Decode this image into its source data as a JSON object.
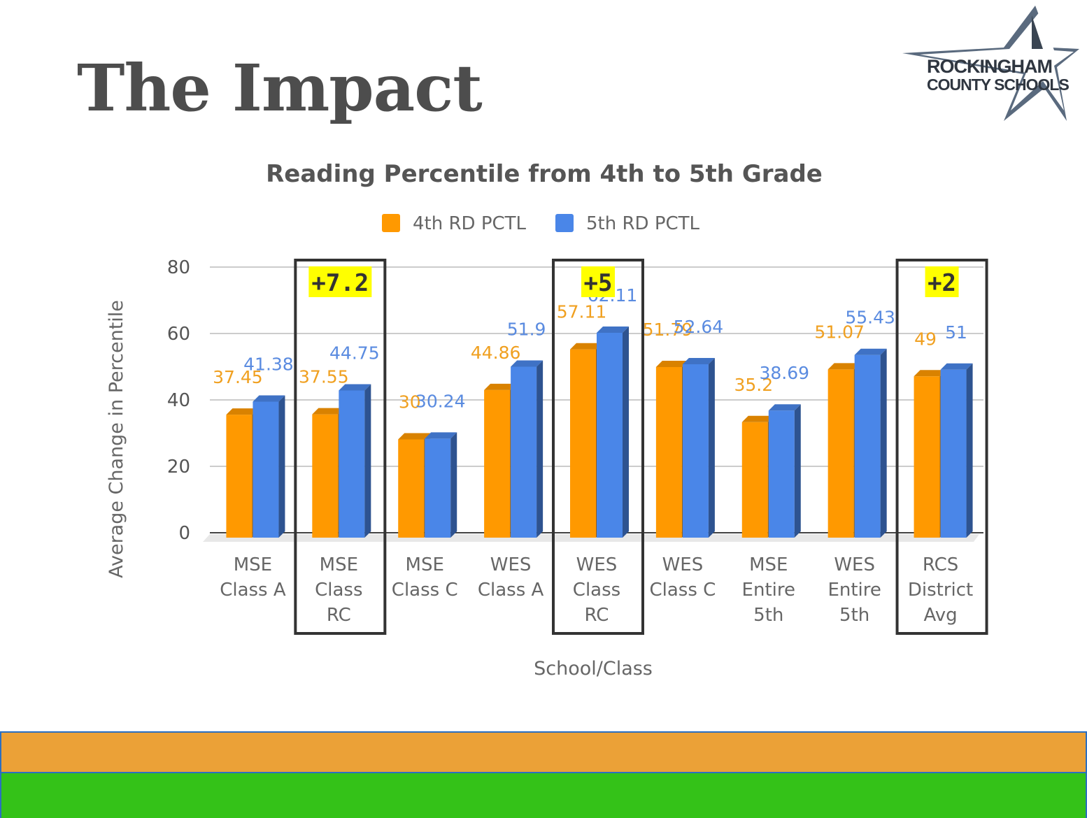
{
  "slide": {
    "title": "The Impact",
    "logo": {
      "line1": "ROCKINGHAM",
      "line2": "COUNTY SCHOOLS"
    }
  },
  "colors": {
    "series_4th": "#ff9900",
    "series_5th": "#4a86e8",
    "highlight": "#ffff00",
    "band_orange": "#eba137",
    "band_green": "#34c218"
  },
  "chart_data": {
    "type": "bar",
    "title": "Reading Percentile from 4th to 5th Grade",
    "xlabel": "School/Class",
    "ylabel": "Average Change in Percentile",
    "ylim": [
      0,
      80
    ],
    "yticks": [
      0,
      20,
      40,
      60,
      80
    ],
    "grid": true,
    "legend_position": "top",
    "categories": [
      [
        "MSE",
        "Class A"
      ],
      [
        "MSE",
        "Class",
        "RC"
      ],
      [
        "MSE",
        "Class C"
      ],
      [
        "WES",
        "Class A"
      ],
      [
        "WES",
        "Class",
        "RC"
      ],
      [
        "WES",
        "Class C"
      ],
      [
        "MSE",
        "Entire",
        "5th"
      ],
      [
        "WES",
        "Entire",
        "5th"
      ],
      [
        "RCS",
        "District",
        "Avg"
      ]
    ],
    "series": [
      {
        "name": "4th RD PCTL",
        "values": [
          37.45,
          37.55,
          30,
          44.86,
          57.11,
          51.79,
          35.2,
          51.07,
          49
        ]
      },
      {
        "name": "5th RD PCTL",
        "values": [
          41.38,
          44.75,
          30.24,
          51.9,
          62.11,
          52.64,
          38.69,
          55.43,
          51
        ]
      }
    ],
    "annotations": [
      {
        "category_index": 1,
        "text": "+7.2"
      },
      {
        "category_index": 4,
        "text": "+5"
      },
      {
        "category_index": 8,
        "text": "+2"
      }
    ]
  }
}
